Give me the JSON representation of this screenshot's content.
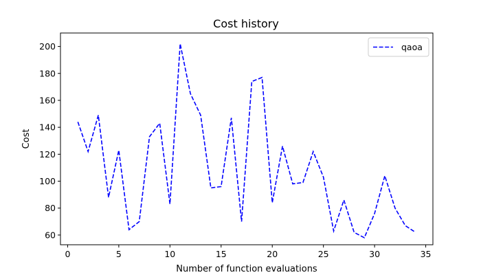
{
  "chart_data": {
    "type": "line",
    "title": "Cost history",
    "xlabel": "Number of function evaluations",
    "ylabel": "Cost",
    "xlim": [
      -0.7,
      35.7
    ],
    "ylim": [
      52.8,
      210
    ],
    "xticks": [
      0,
      5,
      10,
      15,
      20,
      25,
      30,
      35
    ],
    "yticks": [
      60,
      80,
      100,
      120,
      140,
      160,
      180,
      200
    ],
    "grid": false,
    "legend_position": "top-right",
    "series": [
      {
        "name": "qaoa",
        "color": "#0000ff",
        "line_style": "dashed",
        "x": [
          1,
          2,
          3,
          4,
          5,
          6,
          7,
          8,
          9,
          10,
          11,
          12,
          13,
          14,
          15,
          16,
          17,
          18,
          19,
          20,
          21,
          22,
          23,
          24,
          25,
          26,
          27,
          28,
          29,
          30,
          31,
          32,
          33,
          34
        ],
        "y": [
          144,
          122,
          149,
          88,
          123,
          64,
          70,
          133,
          143,
          83,
          202,
          165,
          149,
          95,
          96,
          147,
          70,
          174,
          177,
          84,
          126,
          98,
          99,
          122,
          103,
          63,
          86,
          62,
          58,
          76,
          104,
          80,
          67,
          62
        ]
      }
    ]
  }
}
